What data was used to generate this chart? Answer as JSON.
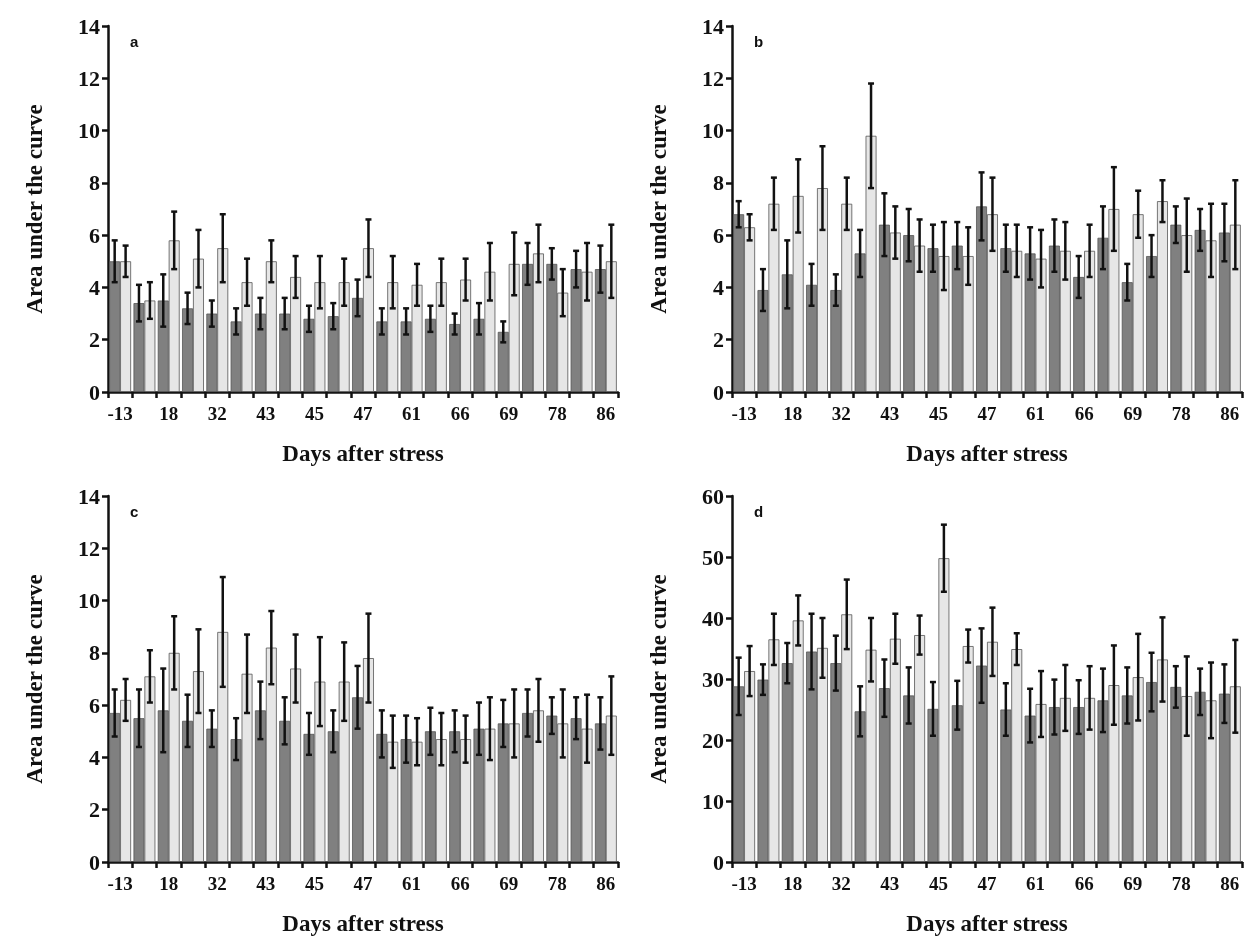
{
  "chart_data": [
    {
      "type": "bar",
      "xlabel": "Days after stress",
      "ylabel": "Area under the curve",
      "annotations": [
        "a"
      ],
      "categories": [
        "-13",
        null,
        "18",
        null,
        "32",
        null,
        "43",
        null,
        "45",
        null,
        "47",
        null,
        "61",
        null,
        "66",
        null,
        "69",
        null,
        "78",
        null,
        "86"
      ],
      "ylim": [
        0,
        14
      ],
      "yticks": [
        0,
        2,
        4,
        6,
        8,
        10,
        12,
        14
      ],
      "series": [
        {
          "color": "#808080",
          "values": [
            5.0,
            3.4,
            3.5,
            3.2,
            3.0,
            2.7,
            3.0,
            3.0,
            2.8,
            2.9,
            3.6,
            2.7,
            2.7,
            2.8,
            2.6,
            2.8,
            2.3,
            4.9,
            4.9,
            4.7,
            4.7
          ],
          "errors": [
            0.8,
            0.7,
            1.0,
            0.6,
            0.5,
            0.5,
            0.6,
            0.6,
            0.5,
            0.5,
            0.7,
            0.5,
            0.5,
            0.5,
            0.4,
            0.6,
            0.4,
            0.8,
            0.6,
            0.7,
            0.9
          ]
        },
        {
          "color": "#e6e6e6",
          "values": [
            5.0,
            3.5,
            5.8,
            5.1,
            5.5,
            4.2,
            5.0,
            4.4,
            4.2,
            4.2,
            5.5,
            4.2,
            4.1,
            4.2,
            4.3,
            4.6,
            4.9,
            5.3,
            3.8,
            4.6,
            5.0
          ],
          "errors": [
            0.6,
            0.7,
            1.1,
            1.1,
            1.3,
            0.9,
            0.8,
            0.8,
            1.0,
            0.9,
            1.1,
            1.0,
            0.8,
            0.9,
            0.8,
            1.1,
            1.2,
            1.1,
            0.9,
            1.1,
            1.4
          ]
        }
      ]
    },
    {
      "type": "bar",
      "xlabel": "Days after stress",
      "ylabel": "Area under the curve",
      "annotations": [
        "b"
      ],
      "categories": [
        "-13",
        null,
        "18",
        null,
        "32",
        null,
        "43",
        null,
        "45",
        null,
        "47",
        null,
        "61",
        null,
        "66",
        null,
        "69",
        null,
        "78",
        null,
        "86"
      ],
      "ylim": [
        0,
        14
      ],
      "yticks": [
        0,
        2,
        4,
        6,
        8,
        10,
        12,
        14
      ],
      "series": [
        {
          "color": "#808080",
          "values": [
            6.8,
            3.9,
            4.5,
            4.1,
            3.9,
            5.3,
            6.4,
            6.0,
            5.5,
            5.6,
            7.1,
            5.5,
            5.3,
            5.6,
            4.4,
            5.9,
            4.2,
            5.2,
            6.4,
            6.2,
            6.1
          ],
          "errors": [
            0.5,
            0.8,
            1.3,
            0.8,
            0.6,
            0.9,
            1.2,
            1.0,
            0.9,
            0.9,
            1.3,
            0.9,
            1.0,
            1.0,
            0.8,
            1.2,
            0.7,
            0.8,
            0.7,
            0.8,
            1.1
          ]
        },
        {
          "color": "#e6e6e6",
          "values": [
            6.3,
            7.2,
            7.5,
            7.8,
            7.2,
            9.8,
            6.1,
            5.6,
            5.2,
            5.2,
            6.8,
            5.4,
            5.1,
            5.4,
            5.4,
            7.0,
            6.8,
            7.3,
            6.0,
            5.8,
            6.4
          ],
          "errors": [
            0.5,
            1.0,
            1.4,
            1.6,
            1.0,
            2.0,
            1.0,
            1.0,
            1.3,
            1.1,
            1.4,
            1.0,
            1.1,
            1.1,
            1.0,
            1.6,
            0.9,
            0.8,
            1.4,
            1.4,
            1.7
          ]
        }
      ]
    },
    {
      "type": "bar",
      "xlabel": "Days after stress",
      "ylabel": "Area under the curve",
      "annotations": [
        "c"
      ],
      "categories": [
        "-13",
        null,
        "18",
        null,
        "32",
        null,
        "43",
        null,
        "45",
        null,
        "47",
        null,
        "61",
        null,
        "66",
        null,
        "69",
        null,
        "78",
        null,
        "86"
      ],
      "ylim": [
        0,
        14
      ],
      "yticks": [
        0,
        2,
        4,
        6,
        8,
        10,
        12,
        14
      ],
      "series": [
        {
          "color": "#808080",
          "values": [
            5.7,
            5.5,
            5.8,
            5.4,
            5.1,
            4.7,
            5.8,
            5.4,
            4.9,
            5.0,
            6.3,
            4.9,
            4.7,
            5.0,
            5.0,
            5.1,
            5.3,
            5.7,
            5.6,
            5.5,
            5.3
          ],
          "errors": [
            0.9,
            1.1,
            1.6,
            1.0,
            0.7,
            0.8,
            1.1,
            0.9,
            0.8,
            0.8,
            1.2,
            0.9,
            0.9,
            0.9,
            0.8,
            1.0,
            0.9,
            0.9,
            0.7,
            0.8,
            1.0
          ]
        },
        {
          "color": "#e6e6e6",
          "values": [
            6.2,
            7.1,
            8.0,
            7.3,
            8.8,
            7.2,
            8.2,
            7.4,
            6.9,
            6.9,
            7.8,
            4.6,
            4.6,
            4.7,
            4.7,
            5.1,
            5.3,
            5.8,
            5.3,
            5.1,
            5.6
          ],
          "errors": [
            0.8,
            1.0,
            1.4,
            1.6,
            2.1,
            1.5,
            1.4,
            1.3,
            1.7,
            1.5,
            1.7,
            1.0,
            0.9,
            1.0,
            0.9,
            1.2,
            1.3,
            1.2,
            1.3,
            1.3,
            1.5
          ]
        }
      ]
    },
    {
      "type": "bar",
      "xlabel": "Days after stress",
      "ylabel": "Area under the curve",
      "annotations": [
        "d"
      ],
      "categories": [
        "-13",
        null,
        "18",
        null,
        "32",
        null,
        "43",
        null,
        "45",
        null,
        "47",
        null,
        "61",
        null,
        "66",
        null,
        "69",
        null,
        "78",
        null,
        "86"
      ],
      "ylim": [
        0,
        60
      ],
      "yticks": [
        0,
        10,
        20,
        30,
        40,
        50,
        60
      ],
      "series": [
        {
          "color": "#808080",
          "values": [
            28.8,
            29.9,
            32.6,
            34.5,
            32.6,
            24.7,
            28.5,
            27.3,
            25.1,
            25.7,
            32.2,
            25.0,
            24.0,
            25.4,
            25.4,
            26.5,
            27.3,
            29.5,
            28.7,
            27.9,
            27.6
          ],
          "errors": [
            4.7,
            2.5,
            3.3,
            6.2,
            4.5,
            4.1,
            4.7,
            4.6,
            4.4,
            4.0,
            6.1,
            4.3,
            4.4,
            4.5,
            4.4,
            5.2,
            4.6,
            4.8,
            3.4,
            3.8,
            4.8
          ]
        },
        {
          "color": "#e6e6e6",
          "values": [
            31.3,
            36.5,
            39.6,
            35.1,
            40.6,
            34.8,
            36.6,
            37.2,
            49.8,
            35.4,
            36.1,
            34.9,
            25.9,
            26.9,
            26.9,
            29.0,
            30.3,
            33.2,
            27.2,
            26.5,
            28.8
          ],
          "errors": [
            4.1,
            4.2,
            4.1,
            4.9,
            5.7,
            5.2,
            4.1,
            3.2,
            5.5,
            2.7,
            5.6,
            2.6,
            5.4,
            5.4,
            5.2,
            6.5,
            7.1,
            6.9,
            6.5,
            6.2,
            7.6
          ]
        }
      ]
    }
  ]
}
